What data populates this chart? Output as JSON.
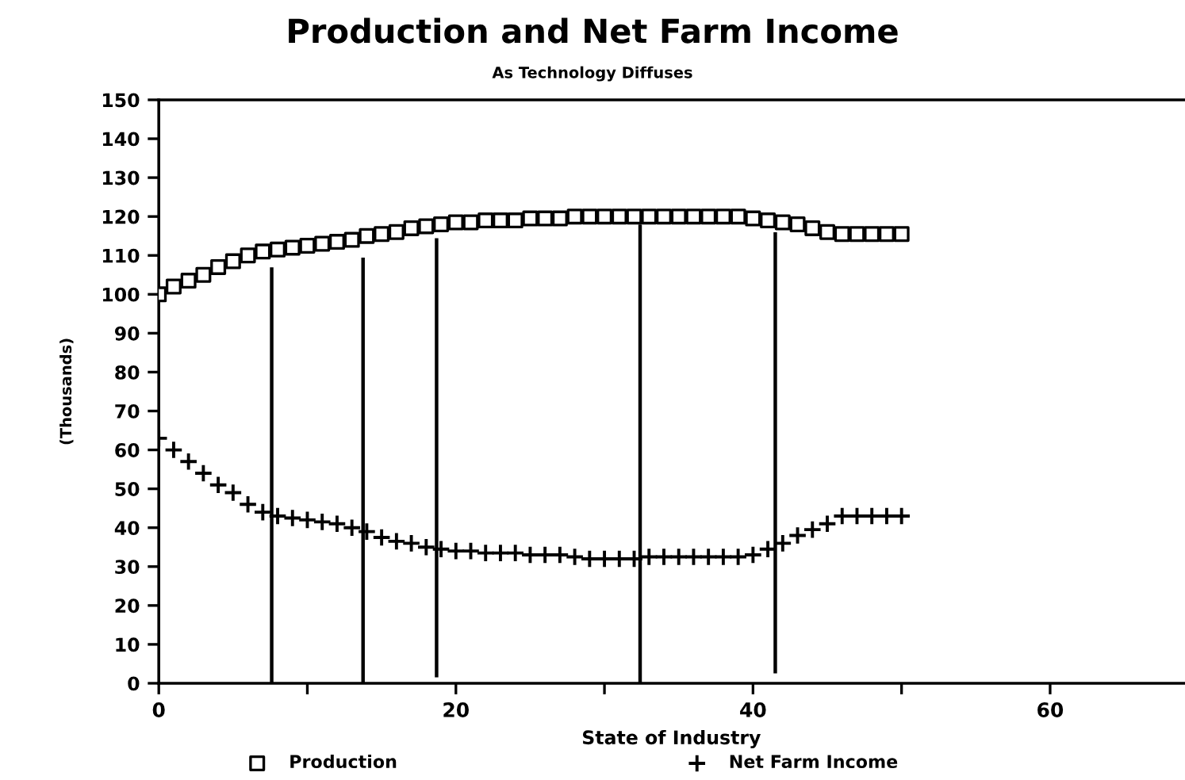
{
  "chart_data": {
    "type": "scatter",
    "title": "Production and Net Farm Income",
    "subtitle": "As Technology Diffuses",
    "xlabel": "State of Industry",
    "ylabel": "(Thousands)",
    "xlim": [
      0,
      69
    ],
    "xticks": [
      0,
      {
        "value": 10,
        "label": null
      },
      20,
      {
        "value": 30,
        "label": null
      },
      40,
      {
        "value": 50,
        "label": null
      },
      60
    ],
    "ylim": [
      0,
      150
    ],
    "yticks": [
      0,
      10,
      20,
      30,
      40,
      50,
      60,
      70,
      80,
      90,
      100,
      110,
      120,
      130,
      140,
      150
    ],
    "grid": false,
    "legend": "bottom",
    "series": [
      {
        "name": "Production",
        "marker": "square",
        "color": "#000000",
        "x": [
          0,
          1,
          2,
          3,
          4,
          5,
          6,
          7,
          8,
          9,
          10,
          11,
          12,
          13,
          14,
          15,
          16,
          17,
          18,
          19,
          20,
          21,
          22,
          23,
          24,
          25,
          26,
          27,
          28,
          29,
          30,
          31,
          32,
          33,
          34,
          35,
          36,
          37,
          38,
          39,
          40,
          41,
          42,
          43,
          44,
          45,
          46,
          47,
          48,
          49,
          50
        ],
        "values": [
          100,
          102,
          103.5,
          105,
          107,
          108.5,
          110,
          111,
          111.5,
          112,
          112.5,
          113,
          113.5,
          114,
          115,
          115.5,
          116,
          117,
          117.5,
          118,
          118.5,
          118.5,
          119,
          119,
          119,
          119.5,
          119.5,
          119.5,
          120,
          120,
          120,
          120,
          120,
          120,
          120,
          120,
          120,
          120,
          120,
          120,
          119.5,
          119,
          118.5,
          118,
          117,
          116,
          115.5,
          115.5,
          115.5,
          115.5,
          115.5
        ]
      },
      {
        "name": "Net Farm Income",
        "marker": "cross",
        "color": "#000000",
        "x": [
          0,
          1,
          2,
          3,
          4,
          5,
          6,
          7,
          8,
          9,
          10,
          11,
          12,
          13,
          14,
          15,
          16,
          17,
          18,
          19,
          20,
          21,
          22,
          23,
          24,
          25,
          26,
          27,
          28,
          29,
          30,
          31,
          32,
          33,
          34,
          35,
          36,
          37,
          38,
          39,
          40,
          41,
          42,
          43,
          44,
          45,
          46,
          47,
          48,
          49,
          50
        ],
        "values": [
          63,
          60,
          57,
          54,
          51,
          49,
          46,
          44,
          43,
          42.5,
          42,
          41.5,
          41,
          40,
          39,
          37.5,
          36.5,
          36,
          35,
          34.5,
          34,
          34,
          33.5,
          33.5,
          33.5,
          33,
          33,
          33,
          32.5,
          32,
          32,
          32,
          32,
          32.5,
          32.5,
          32.5,
          32.5,
          32.5,
          32.5,
          32.5,
          33,
          34.5,
          36,
          38,
          39.5,
          41,
          43,
          43,
          43,
          43,
          43
        ]
      },
      {
        "type": "line",
        "marker": "none",
        "line_style": "solid",
        "color": "#000000",
        "x": [
          7.6,
          7.6
        ],
        "values": [
          0,
          106.5
        ]
      },
      {
        "type": "line",
        "marker": "none",
        "line_style": "solid",
        "color": "#000000",
        "x": [
          13.75,
          13.75
        ],
        "values": [
          0,
          109
        ]
      },
      {
        "type": "line",
        "marker": "none",
        "line_style": "solid",
        "color": "#000000",
        "x": [
          18.7,
          18.7
        ],
        "values": [
          2,
          114
        ]
      },
      {
        "type": "line",
        "marker": "none",
        "line_style": "solid",
        "color": "#000000",
        "x": [
          32.4,
          32.4
        ],
        "values": [
          0,
          117.5
        ]
      },
      {
        "type": "line",
        "marker": "none",
        "line_style": "solid",
        "color": "#000000",
        "x": [
          41.5,
          41.5
        ],
        "values": [
          3,
          115.5
        ]
      }
    ]
  }
}
